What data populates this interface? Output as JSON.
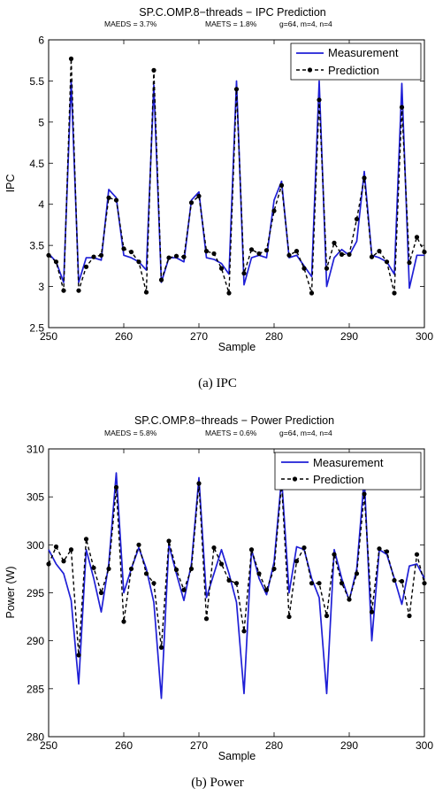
{
  "chart_data": [
    {
      "type": "line",
      "title": "SP.C.OMP.8−threads − IPC Prediction",
      "stats": [
        "MAEDS = 3.7%",
        "MAETS = 1.8%",
        "g=64, m=4, n=4"
      ],
      "xlabel": "Sample",
      "ylabel": "IPC",
      "xlim": [
        250,
        300
      ],
      "ylim": [
        2.5,
        6
      ],
      "xticks": [
        250,
        260,
        270,
        280,
        290,
        300
      ],
      "yticks": [
        2.5,
        3,
        3.5,
        4,
        4.5,
        5,
        5.5,
        6
      ],
      "ytick_labels": [
        "2.5",
        "3",
        "3.5",
        "4",
        "4.5",
        "5",
        "5.5",
        "6"
      ],
      "legend_position": "top-right",
      "caption": "(a)  IPC",
      "x": [
        250,
        251,
        252,
        253,
        254,
        255,
        256,
        257,
        258,
        259,
        260,
        261,
        262,
        263,
        264,
        265,
        266,
        267,
        268,
        269,
        270,
        271,
        272,
        273,
        274,
        275,
        276,
        277,
        278,
        279,
        280,
        281,
        282,
        283,
        284,
        285,
        286,
        287,
        288,
        289,
        290,
        291,
        292,
        293,
        294,
        295,
        296,
        297,
        298,
        299,
        300
      ],
      "series": [
        {
          "name": "Measurement",
          "color": "#1f1fd6",
          "style": "solid",
          "values": [
            3.4,
            3.3,
            3.05,
            5.5,
            3.05,
            3.35,
            3.35,
            3.32,
            4.18,
            4.08,
            3.38,
            3.35,
            3.3,
            3.2,
            5.45,
            3.05,
            3.35,
            3.35,
            3.3,
            4.05,
            4.15,
            3.35,
            3.33,
            3.28,
            3.15,
            5.5,
            3.02,
            3.35,
            3.38,
            3.35,
            4.05,
            4.28,
            3.35,
            3.38,
            3.25,
            3.12,
            5.5,
            3.0,
            3.35,
            3.45,
            3.38,
            3.55,
            4.4,
            3.38,
            3.35,
            3.3,
            3.15,
            5.47,
            2.98,
            3.38,
            3.38
          ]
        },
        {
          "name": "Prediction",
          "color": "#000000",
          "style": "dashed-dot",
          "values": [
            3.38,
            3.3,
            2.95,
            5.77,
            2.95,
            3.24,
            3.36,
            3.38,
            4.08,
            4.05,
            3.46,
            3.42,
            3.3,
            2.93,
            5.63,
            3.08,
            3.35,
            3.37,
            3.36,
            4.02,
            4.1,
            3.43,
            3.4,
            3.22,
            2.92,
            5.4,
            3.16,
            3.45,
            3.4,
            3.44,
            3.92,
            4.23,
            3.38,
            3.43,
            3.22,
            2.92,
            5.27,
            3.22,
            3.53,
            3.39,
            3.39,
            3.82,
            4.32,
            3.36,
            3.43,
            3.3,
            2.92,
            5.18,
            3.29,
            3.6,
            3.42
          ]
        }
      ]
    },
    {
      "type": "line",
      "title": "SP.C.OMP.8−threads − Power Prediction",
      "stats": [
        "MAEDS = 5.8%",
        "MAETS = 0.6%",
        "g=64, m=4, n=4"
      ],
      "xlabel": "Sample",
      "ylabel": "Power (W)",
      "xlim": [
        250,
        300
      ],
      "ylim": [
        280,
        310
      ],
      "xticks": [
        250,
        260,
        270,
        280,
        290,
        300
      ],
      "yticks": [
        280,
        285,
        290,
        295,
        300,
        305,
        310
      ],
      "ytick_labels": [
        "280",
        "285",
        "290",
        "295",
        "300",
        "305",
        "310"
      ],
      "legend_position": "top-right",
      "caption": "(b)  Power",
      "x": [
        250,
        251,
        252,
        253,
        254,
        255,
        256,
        257,
        258,
        259,
        260,
        261,
        262,
        263,
        264,
        265,
        266,
        267,
        268,
        269,
        270,
        271,
        272,
        273,
        274,
        275,
        276,
        277,
        278,
        279,
        280,
        281,
        282,
        283,
        284,
        285,
        286,
        287,
        288,
        289,
        290,
        291,
        292,
        293,
        294,
        295,
        296,
        297,
        298,
        299,
        300
      ],
      "series": [
        {
          "name": "Measurement",
          "color": "#1f1fd6",
          "style": "solid",
          "values": [
            299.5,
            298.0,
            297.0,
            294.2,
            285.5,
            299.5,
            296.5,
            293.0,
            298.0,
            307.5,
            295.0,
            297.5,
            299.7,
            297.5,
            294.0,
            284.0,
            300.0,
            297.0,
            294.2,
            298.0,
            307.0,
            294.5,
            297.0,
            299.5,
            297.0,
            294.0,
            284.5,
            299.5,
            296.5,
            294.8,
            298.2,
            307.0,
            295.0,
            299.8,
            299.5,
            296.5,
            294.5,
            284.5,
            299.5,
            296.5,
            294.2,
            297.5,
            307.0,
            290.0,
            299.5,
            299.0,
            296.5,
            293.8,
            297.8,
            298.0,
            296.5
          ]
        },
        {
          "name": "Prediction",
          "color": "#000000",
          "style": "dashed-dot",
          "values": [
            298.0,
            299.8,
            298.3,
            299.5,
            288.5,
            300.6,
            297.6,
            295.0,
            297.5,
            306.0,
            292.0,
            297.5,
            300.0,
            297.0,
            296.0,
            289.3,
            300.4,
            297.4,
            295.3,
            297.5,
            306.4,
            292.3,
            299.7,
            298.0,
            296.3,
            296.0,
            291.0,
            299.5,
            297.0,
            295.3,
            297.5,
            306.4,
            292.5,
            298.3,
            299.7,
            296.0,
            296.0,
            292.6,
            299.0,
            296.0,
            294.3,
            297.0,
            305.3,
            293.0,
            299.6,
            299.3,
            296.3,
            296.2,
            292.6,
            299.0,
            296.0
          ]
        }
      ]
    }
  ]
}
